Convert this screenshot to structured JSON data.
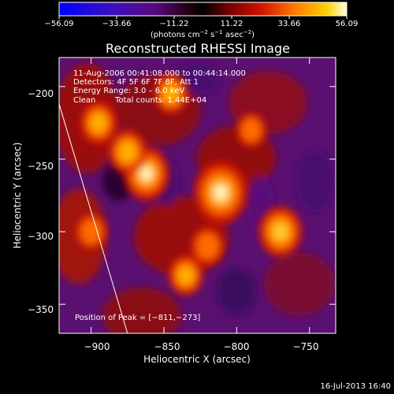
{
  "chart_data": {
    "type": "heatmap",
    "title": "Reconstructed RHESSI Image",
    "xlabel": "Heliocentric X (arcsec)",
    "ylabel": "Heliocentric Y (arcsec)",
    "x_ticks": [
      -900,
      -850,
      -800,
      -750
    ],
    "y_ticks": [
      -200,
      -250,
      -300,
      -350
    ],
    "x_tick_labels": [
      "−900",
      "−850",
      "−800",
      "−750"
    ],
    "y_tick_labels": [
      "−200",
      "−250",
      "−300",
      "−350"
    ],
    "xlim": [
      -922,
      -732
    ],
    "ylim": [
      -370,
      -180
    ],
    "colorbar": {
      "min": -56.09,
      "max": 56.09,
      "tick_labels": [
        "−56.09",
        "−33.66",
        "−11.22",
        "11.22",
        "33.66",
        "56.09"
      ],
      "unit_parts": [
        "(photons cm",
        "−2",
        " s",
        "−1",
        " asec",
        "−2",
        ")"
      ]
    },
    "annotations": {
      "time_range": "11‑Aug‑2006 00:41:08.000 to 00:44:14.000",
      "detectors": "Detectors: 4F 5F 6F 7F 8F, Att 1",
      "energy": "Energy Range: 3.0 – 6.0 keV",
      "clean_label": "Clean",
      "total_counts": "Total counts: 1.44E+04",
      "peak": "Position of Peak = [−811,−273]"
    },
    "peak_position": [
      -811,
      -273
    ],
    "sources": [
      {
        "x": -811,
        "y": -273,
        "level": 1.0
      },
      {
        "x": -862,
        "y": -260,
        "level": 0.78
      },
      {
        "x": -875,
        "y": -245,
        "level": 0.55
      },
      {
        "x": -770,
        "y": -300,
        "level": 0.7
      },
      {
        "x": -845,
        "y": -205,
        "level": 0.45
      },
      {
        "x": -895,
        "y": -225,
        "level": 0.5
      },
      {
        "x": -900,
        "y": -300,
        "level": 0.35
      },
      {
        "x": -835,
        "y": -330,
        "level": 0.45
      },
      {
        "x": -790,
        "y": -230,
        "level": 0.3
      },
      {
        "x": -820,
        "y": -310,
        "level": 0.4
      }
    ],
    "limb_line": [
      [
        -922,
        -212
      ],
      [
        -875,
        -370
      ]
    ],
    "colors": {
      "background": "#000000",
      "text": "#ffffff",
      "low": "#2a0080",
      "mid": "#b01010",
      "high": "#ffffe0"
    }
  },
  "footer": {
    "timestamp": "16‑Jul‑2013 16:40"
  }
}
